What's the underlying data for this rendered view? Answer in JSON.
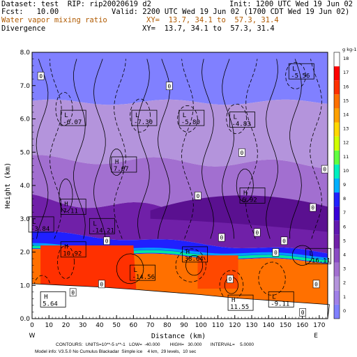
{
  "header": {
    "dataset": "Dataset: test  RIP: rip20020619 d2",
    "init": "Init: 1200 UTC Wed 19 Jun 02",
    "fcst": "Fcst:   10.00",
    "valid": "Valid: 2200 UTC Wed 19 Jun 02 (1700 CDT Wed 19 Jun 02)",
    "var1_name": "Water vapor mixing ratio",
    "var1_xy": "XY=  13.7, 34.1 to  57.3, 31.4",
    "var2_name": "Divergence",
    "var2_xy": "XY=  13.7, 34.1 to  57.3, 31.4"
  },
  "footer": {
    "line1": "CONTOURS:  UNITS=10**-5 s**-1   LOW=  -40.000        HIGH=   30.000       INTERVAL=    5.0000",
    "line2": "Model info: V3.5.0 No Cumulus Blackadar  Simple ice    4 km,  29 levels,  10 sec"
  },
  "chart_data": {
    "type": "heatmap",
    "xlabel": "Distance (km)",
    "ylabel": "Height (km)",
    "xlim": [
      0,
      175
    ],
    "ylim": [
      0,
      8
    ],
    "x_ticks": [
      "0",
      "10",
      "20",
      "30",
      "40",
      "50",
      "60",
      "70",
      "80",
      "90",
      "100",
      "110",
      "120",
      "130",
      "140",
      "150",
      "160",
      "170"
    ],
    "y_ticks": [
      "0.0",
      "1.0",
      "2.0",
      "3.0",
      "4.0",
      "5.0",
      "6.0",
      "7.0",
      "8.0"
    ],
    "x_end_labels": [
      "W",
      "E"
    ],
    "colorbar": {
      "unit": "g kg-1",
      "labels": [
        "0",
        "1",
        "2",
        "3",
        "4",
        "5",
        "6",
        "7",
        "8",
        "9",
        "10",
        "11",
        "12",
        "13",
        "14",
        "15",
        "16",
        "17",
        "18"
      ],
      "colors": [
        "#8080ff",
        "#a080e8",
        "#b494dc",
        "#a26fd0",
        "#8a4cc4",
        "#7020a8",
        "#6018b0",
        "#3800d8",
        "#2020ff",
        "#00b0ff",
        "#00f0c0",
        "#60ff40",
        "#d0ff00",
        "#ffd800",
        "#ffa000",
        "#ff7000",
        "#ff3000",
        "#ff0000",
        "#ffffff"
      ]
    },
    "layers": [
      {
        "z_bottom": 6.5,
        "z_top": 8.0,
        "mixing_ratio": "0-1",
        "color": "#8080ff"
      },
      {
        "z_bottom": 4.8,
        "z_top": 6.5,
        "mixing_ratio": "1-2",
        "color": "#b494dc"
      },
      {
        "z_bottom": 3.6,
        "z_top": 4.8,
        "mixing_ratio": "2-4",
        "color": "#a26fd0"
      },
      {
        "z_bottom": 2.6,
        "z_top": 3.6,
        "mixing_ratio": "4-6",
        "color": "#7020a8"
      },
      {
        "z_bottom": 2.0,
        "z_top": 2.6,
        "mixing_ratio": "6-10",
        "color": "#2020ff"
      },
      {
        "z_bottom": 0.5,
        "z_top": 2.0,
        "mixing_ratio": "14-17",
        "color": "#ff7000"
      }
    ],
    "contour_labels": [
      {
        "kind": "L",
        "x": 17,
        "z": 6.05,
        "value": "-6.07"
      },
      {
        "kind": "L",
        "x": 59,
        "z": 6.05,
        "value": "-7.30"
      },
      {
        "kind": "L",
        "x": 87,
        "z": 6.05,
        "value": "-5.80"
      },
      {
        "kind": "L",
        "x": 117,
        "z": 6.0,
        "value": "-4.83"
      },
      {
        "kind": "L",
        "x": 152,
        "z": 7.45,
        "value": "-5.56"
      },
      {
        "kind": "H",
        "x": 47,
        "z": 4.65,
        "value": "7.07"
      },
      {
        "kind": "H",
        "x": 17,
        "z": 3.38,
        "value": "7.11"
      },
      {
        "kind": "H",
        "x": 123,
        "z": 3.72,
        "value": "6.92"
      },
      {
        "kind": "L",
        "x": -2,
        "z": 2.85,
        "value": "-3.84"
      },
      {
        "kind": "L",
        "x": 34,
        "z": 2.8,
        "value": "-14.21"
      },
      {
        "kind": "H",
        "x": 17,
        "z": 2.1,
        "value": "10.92"
      },
      {
        "kind": "H",
        "x": 89,
        "z": 1.95,
        "value": "38.64"
      },
      {
        "kind": "L",
        "x": 58,
        "z": 1.4,
        "value": "-14.56"
      },
      {
        "kind": "L",
        "x": 162,
        "z": 1.9,
        "value": "-16.11"
      },
      {
        "kind": "H",
        "x": 5,
        "z": 0.6,
        "value": "5.64"
      },
      {
        "kind": "H",
        "x": 116,
        "z": 0.5,
        "value": "11.55"
      },
      {
        "kind": "L",
        "x": 140,
        "z": 0.6,
        "value": "-9.11"
      }
    ],
    "zero_labels": [
      {
        "x": 5,
        "z": 7.3
      },
      {
        "x": 81,
        "z": 7.0
      },
      {
        "x": 124,
        "z": 5.0
      },
      {
        "x": 173,
        "z": 4.5
      },
      {
        "x": 98,
        "z": 3.7
      },
      {
        "x": 166,
        "z": 3.35
      },
      {
        "x": 44,
        "z": 2.35
      },
      {
        "x": 133,
        "z": 2.6
      },
      {
        "x": 149,
        "z": 2.35
      },
      {
        "x": 144,
        "z": 2.0
      },
      {
        "x": 41,
        "z": 1.05
      },
      {
        "x": 24,
        "z": 0.8
      },
      {
        "x": 168,
        "z": 1.05
      },
      {
        "x": 117,
        "z": 1.2
      },
      {
        "x": 160,
        "z": 0.2
      },
      {
        "x": 112,
        "z": 2.45
      }
    ]
  }
}
